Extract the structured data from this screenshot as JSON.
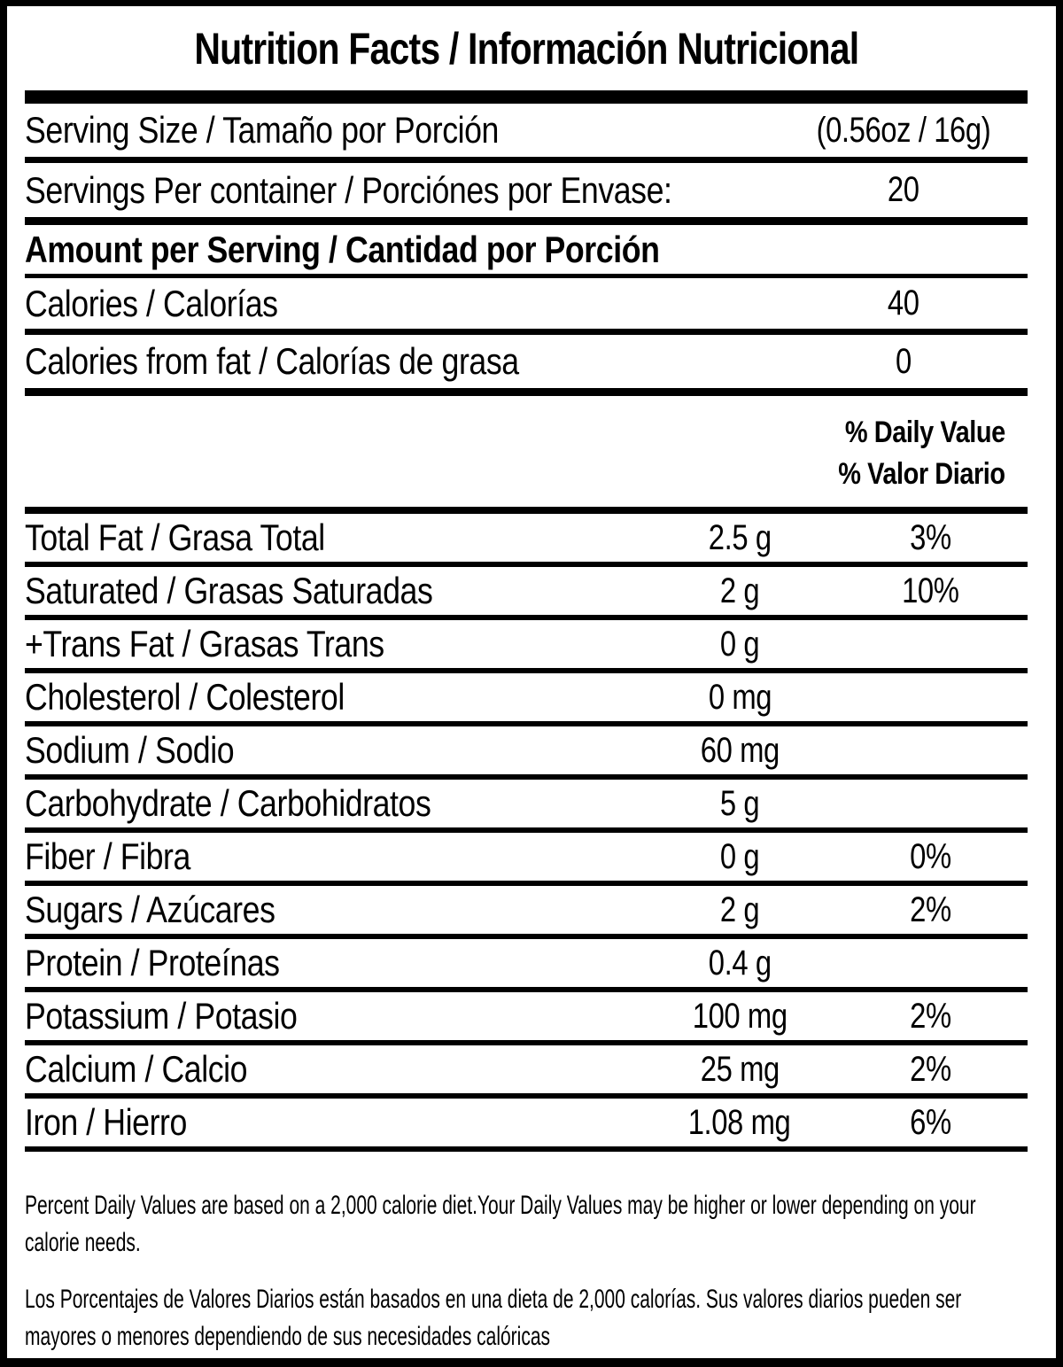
{
  "label": {
    "title": "Nutrition Facts / Información Nutricional",
    "serving_rows": [
      {
        "label": "Serving Size / Tamaño por Porción",
        "value": "(0.56oz / 16g)"
      },
      {
        "label": "Servings Per container / Porciónes por Envase:",
        "value": "20"
      }
    ],
    "amount_header": "Amount per Serving / Cantidad por Porción",
    "calorie_rows": [
      {
        "label": "Calories / Calorías",
        "value": "40"
      },
      {
        "label": "Calories from fat / Calorías de grasa",
        "value": "0"
      }
    ],
    "daily_value_header": {
      "line1": "% Daily Value",
      "line2": "% Valor Diario"
    },
    "nutrient_rows": [
      {
        "label": "Total Fat / Grasa Total",
        "amount": "2.5 g",
        "dv": "3%"
      },
      {
        "label": "Saturated / Grasas Saturadas",
        "amount": "2 g",
        "dv": "10%"
      },
      {
        "label": "+Trans Fat / Grasas Trans",
        "amount": "0 g",
        "dv": ""
      },
      {
        "label": "Cholesterol / Colesterol",
        "amount": "0 mg",
        "dv": ""
      },
      {
        "label": "Sodium / Sodio",
        "amount": "60 mg",
        "dv": ""
      },
      {
        "label": "Carbohydrate / Carbohidratos",
        "amount": "5 g",
        "dv": ""
      },
      {
        "label": "Fiber / Fibra",
        "amount": "0 g",
        "dv": "0%"
      },
      {
        "label": "Sugars / Azúcares",
        "amount": "2 g",
        "dv": "2%"
      },
      {
        "label": "Protein / Proteínas",
        "amount": "0.4 g",
        "dv": ""
      },
      {
        "label": "Potassium / Potasio",
        "amount": "100 mg",
        "dv": "2%"
      },
      {
        "label": "Calcium / Calcio",
        "amount": "25 mg",
        "dv": "2%"
      },
      {
        "label": "Iron / Hierro",
        "amount": "1.08 mg",
        "dv": "6%"
      }
    ],
    "footnote_en_lines": [
      "Percent Daily Values are based on a 2,000 calorie diet.Your Daily Values may be higher or lower depending on your",
      "calorie needs."
    ],
    "footnote_es_lines": [
      "Los Porcentajes de Valores Diarios están basados en una dieta de 2,000 calorías. Sus valores diarios pueden ser",
      "mayores o menores dependiendo de sus necesidades calóricas"
    ],
    "colors": {
      "ink": "#000000",
      "background": "#ffffff"
    }
  }
}
